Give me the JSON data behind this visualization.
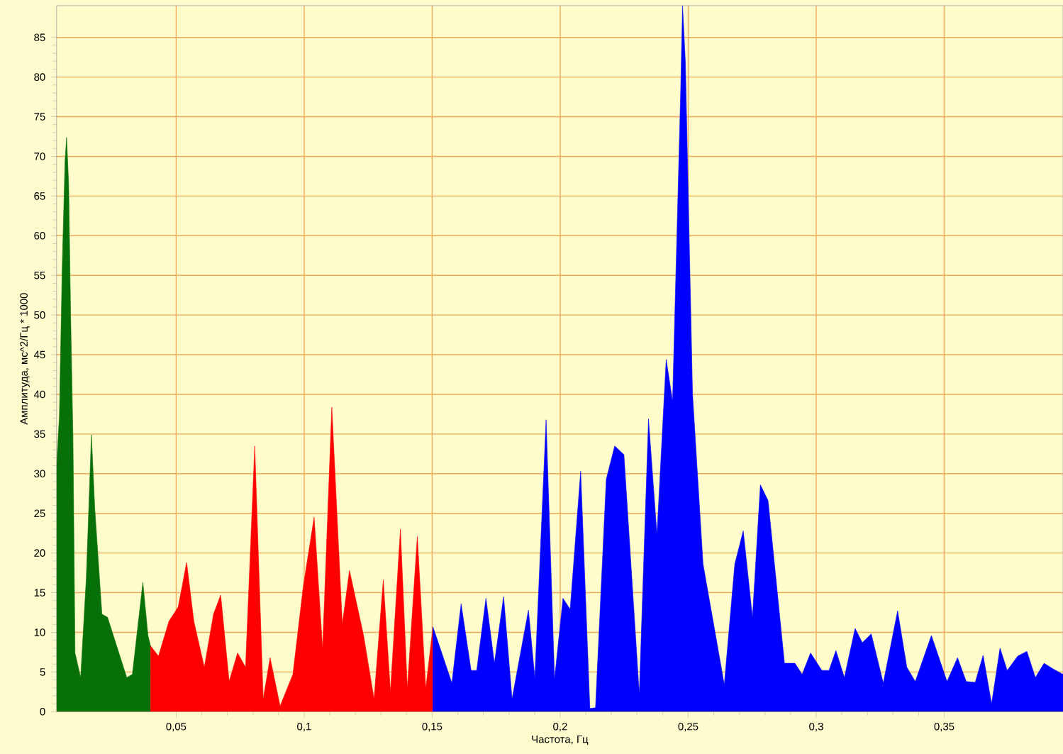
{
  "chart_data": {
    "type": "area",
    "xlabel": "Частота, Гц",
    "ylabel": "Амплитуда, мс^2/Гц * 1000",
    "xlim": [
      0.0033,
      0.3964
    ],
    "ylim": [
      0,
      89
    ],
    "xticks": [
      {
        "value": 0.05,
        "label": "0,05"
      },
      {
        "value": 0.1,
        "label": "0,1"
      },
      {
        "value": 0.15,
        "label": "0,15"
      },
      {
        "value": 0.2,
        "label": "0,2"
      },
      {
        "value": 0.25,
        "label": "0,25"
      },
      {
        "value": 0.3,
        "label": "0,3"
      },
      {
        "value": 0.35,
        "label": "0,35"
      }
    ],
    "yticks": [
      0,
      5,
      10,
      15,
      20,
      25,
      30,
      35,
      40,
      45,
      50,
      55,
      60,
      65,
      70,
      75,
      80,
      85
    ],
    "grid": true,
    "series": [
      {
        "color": "#087008",
        "x": [
          0.0033,
          0.0044,
          0.0055,
          0.0066,
          0.0072,
          0.008,
          0.0088,
          0.0097,
          0.0105,
          0.0127,
          0.0149,
          0.0169,
          0.0182,
          0.021,
          0.0232,
          0.0307,
          0.0329,
          0.037,
          0.039,
          0.04
        ],
        "values": [
          31.0,
          37.3,
          56,
          69.4,
          72.4,
          66.7,
          49.8,
          34.6,
          7.4,
          4.3,
          16.8,
          34.9,
          25.7,
          12.3,
          11.9,
          4.3,
          4.7,
          16.3,
          9.6,
          8.3
        ]
      },
      {
        "color": "#ff0000",
        "x": [
          0.04,
          0.0431,
          0.0472,
          0.0508,
          0.0541,
          0.0569,
          0.061,
          0.0646,
          0.0674,
          0.0707,
          0.074,
          0.0771,
          0.0807,
          0.084,
          0.0867,
          0.0906,
          0.0956,
          0.0997,
          0.1039,
          0.1072,
          0.1108,
          0.1149,
          0.1177,
          0.1232,
          0.1273,
          0.1309,
          0.1337,
          0.1376,
          0.1403,
          0.1442,
          0.1475,
          0.1503
        ],
        "values": [
          8.3,
          7.0,
          11.4,
          13.2,
          18.8,
          11.4,
          5.6,
          12.3,
          14.7,
          3.8,
          7.4,
          5.6,
          33.5,
          1.6,
          6.8,
          0.7,
          4.7,
          15.9,
          24.5,
          7.9,
          38.4,
          11.0,
          17.8,
          9.6,
          1.6,
          16.6,
          2.5,
          23.0,
          2.9,
          22.1,
          2.9,
          10.7
        ]
      },
      {
        "color": "#0000ff",
        "x": [
          0.1503,
          0.1577,
          0.1613,
          0.1652,
          0.1674,
          0.171,
          0.1743,
          0.1779,
          0.1812,
          0.1876,
          0.1901,
          0.1945,
          0.1978,
          0.2011,
          0.2039,
          0.208,
          0.2116,
          0.2138,
          0.218,
          0.2213,
          0.2249,
          0.2309,
          0.2345,
          0.2378,
          0.2414,
          0.2439,
          0.247,
          0.2478,
          0.2489,
          0.2517,
          0.2558,
          0.2641,
          0.2682,
          0.2715,
          0.2751,
          0.2782,
          0.2812,
          0.2876,
          0.2917,
          0.2945,
          0.2978,
          0.3022,
          0.305,
          0.3077,
          0.311,
          0.3152,
          0.318,
          0.3215,
          0.3262,
          0.3318,
          0.3354,
          0.3387,
          0.345,
          0.3511,
          0.3552,
          0.3586,
          0.3621,
          0.3652,
          0.3685,
          0.3718,
          0.3746,
          0.3787,
          0.3823,
          0.3856,
          0.389,
          0.3925,
          0.3964
        ],
        "values": [
          10.7,
          3.6,
          13.6,
          5.2,
          5.2,
          14.3,
          6.1,
          14.5,
          1.6,
          12.8,
          4.3,
          36.8,
          4.1,
          14.3,
          12.9,
          30.3,
          0.4,
          0.5,
          29.3,
          33.5,
          32.4,
          2.2,
          36.9,
          22.3,
          44.4,
          39.1,
          77.4,
          89,
          81.9,
          40,
          18.6,
          3.4,
          18.6,
          22.8,
          11.9,
          28.6,
          26.6,
          6.1,
          6.1,
          4.7,
          7.4,
          5.2,
          5.2,
          7.7,
          4.3,
          10.5,
          8.7,
          9.8,
          3.6,
          12.7,
          5.6,
          3.8,
          9.6,
          3.8,
          6.8,
          3.8,
          3.7,
          7.1,
          1.0,
          8.0,
          5.2,
          7.0,
          7.6,
          4.3,
          6.1,
          5.4,
          4.7
        ]
      }
    ]
  }
}
